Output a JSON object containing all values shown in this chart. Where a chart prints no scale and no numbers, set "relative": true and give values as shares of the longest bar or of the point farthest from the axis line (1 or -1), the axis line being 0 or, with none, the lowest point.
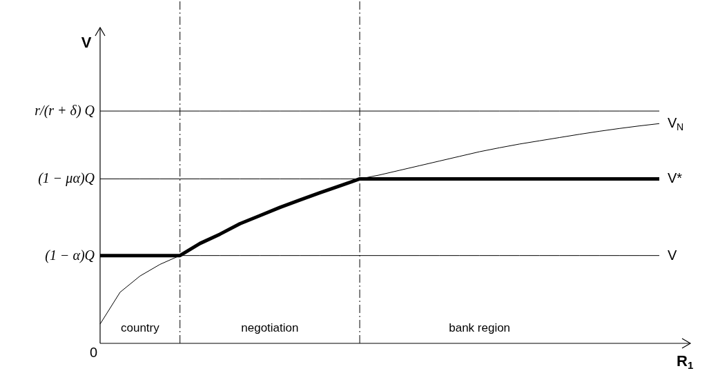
{
  "chart_data": {
    "type": "line",
    "relative": true,
    "xlabel": "R$_{1}$",
    "ylabel": "V",
    "legend": false,
    "marker": "none",
    "categories": [
      null,
      null,
      null,
      null,
      null,
      null,
      null,
      null,
      null,
      null,
      null,
      null,
      null,
      null,
      null,
      null,
      null,
      null,
      null,
      null,
      null,
      null,
      null,
      null,
      null,
      null,
      null,
      null,
      null
    ],
    "series": [
      {
        "name": "V$_{N}$",
        "color": "#000000",
        "values": [
          0.083,
          0.22,
          0.29,
          0.34,
          0.378,
          0.43,
          0.47,
          0.515,
          0.55,
          0.585,
          0.617,
          0.648,
          0.678,
          0.708,
          0.725,
          0.745,
          0.765,
          0.785,
          0.805,
          0.825,
          0.842,
          0.858,
          0.872,
          0.886,
          0.9,
          0.913,
          0.925,
          0.936,
          0.946
        ]
      },
      {
        "name": "V*",
        "color": "#000000",
        "values": [
          0.378,
          0.378,
          0.378,
          0.378,
          0.378,
          0.43,
          0.47,
          0.515,
          0.55,
          0.585,
          0.617,
          0.648,
          0.678,
          0.708,
          0.708,
          0.708,
          0.708,
          0.708,
          0.708,
          0.708,
          0.708,
          0.708,
          0.708,
          0.708,
          0.708,
          0.708,
          0.708,
          0.708,
          0.708
        ]
      },
      {
        "name": "V",
        "color": "#000000",
        "values": [
          0.378,
          0.378,
          0.378,
          0.378,
          0.378,
          0.378,
          0.378,
          0.378,
          0.378,
          0.378,
          0.378,
          0.378,
          0.378,
          0.378,
          0.378,
          0.378,
          0.378,
          0.378,
          0.378,
          0.378,
          0.378,
          0.378,
          0.378,
          0.378,
          0.378,
          0.378,
          0.378,
          0.378,
          0.378
        ]
      },
      {
        "color": "#000000",
        "values": [
          0.708,
          0.708,
          0.708,
          0.708,
          0.708,
          0.708,
          0.708,
          0.708,
          0.708,
          0.708,
          0.708,
          0.708,
          0.708,
          0.708,
          0.708,
          0.708,
          0.708,
          0.708,
          0.708,
          0.708,
          0.708,
          0.708,
          0.708,
          0.708,
          0.708,
          0.708,
          0.708,
          0.708,
          0.708
        ]
      },
      {
        "color": "#000000",
        "values": [
          1,
          1,
          1,
          1,
          1,
          1,
          1,
          1,
          1,
          1,
          1,
          1,
          1,
          1,
          1,
          1,
          1,
          1,
          1,
          1,
          1,
          1,
          1,
          1,
          1,
          1,
          1,
          1,
          1
        ]
      }
    ],
    "annotations": [
      "r/(r + δ) Q",
      "(1 − μα)Q",
      "(1 − α)Q",
      "0",
      "country",
      "negotiation",
      "bank region"
    ]
  }
}
